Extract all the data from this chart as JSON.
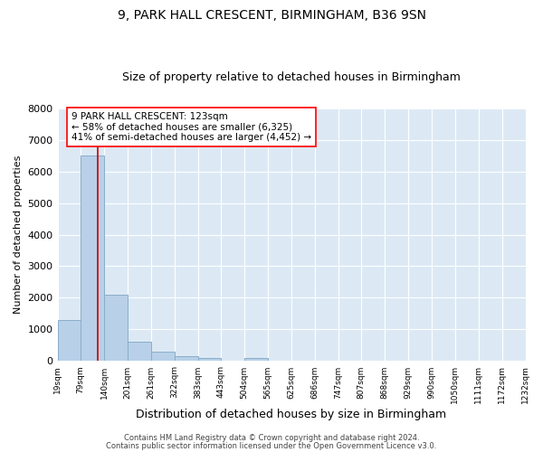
{
  "title1": "9, PARK HALL CRESCENT, BIRMINGHAM, B36 9SN",
  "title2": "Size of property relative to detached houses in Birmingham",
  "xlabel": "Distribution of detached houses by size in Birmingham",
  "ylabel": "Number of detached properties",
  "annotation_line1": "9 PARK HALL CRESCENT: 123sqm",
  "annotation_line2": "← 58% of detached houses are smaller (6,325)",
  "annotation_line3": "41% of semi-detached houses are larger (4,452) →",
  "property_size": 123,
  "bin_edges": [
    19,
    79,
    140,
    201,
    261,
    322,
    383,
    443,
    504,
    565,
    625,
    686,
    747,
    807,
    868,
    929,
    990,
    1050,
    1111,
    1172,
    1232
  ],
  "bar_heights": [
    1300,
    6500,
    2100,
    620,
    300,
    150,
    100,
    0,
    100,
    0,
    0,
    0,
    0,
    0,
    0,
    0,
    0,
    0,
    0,
    0
  ],
  "bar_color": "#b8d0e8",
  "bar_edgecolor": "#8aadc8",
  "vline_color": "#cc0000",
  "background_color": "#dce9f5",
  "grid_color": "#ffffff",
  "ylim": [
    0,
    8000
  ],
  "yticks": [
    0,
    1000,
    2000,
    3000,
    4000,
    5000,
    6000,
    7000,
    8000
  ],
  "tick_labels": [
    "19sqm",
    "79sqm",
    "140sqm",
    "201sqm",
    "261sqm",
    "322sqm",
    "383sqm",
    "443sqm",
    "504sqm",
    "565sqm",
    "625sqm",
    "686sqm",
    "747sqm",
    "807sqm",
    "868sqm",
    "929sqm",
    "990sqm",
    "1050sqm",
    "1111sqm",
    "1172sqm",
    "1232sqm"
  ],
  "footer1": "Contains HM Land Registry data © Crown copyright and database right 2024.",
  "footer2": "Contains public sector information licensed under the Open Government Licence v3.0.",
  "title1_fontsize": 10,
  "title2_fontsize": 9,
  "ylabel_fontsize": 8,
  "xlabel_fontsize": 9,
  "tick_fontsize": 6.5,
  "ytick_fontsize": 8,
  "ann_fontsize": 7.5,
  "footer_fontsize": 6
}
